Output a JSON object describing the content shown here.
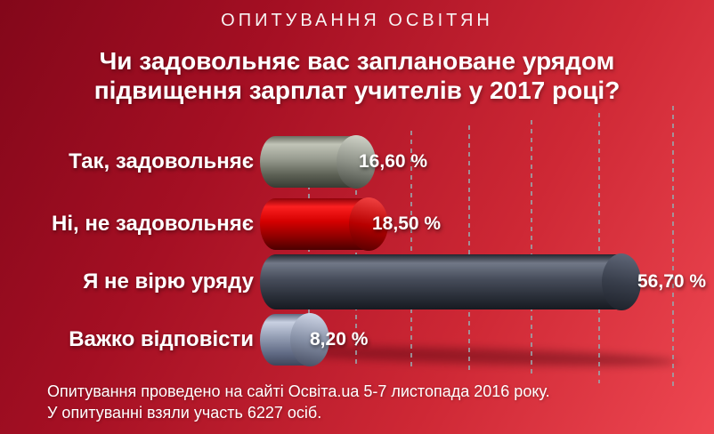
{
  "header": {
    "overline": "ОПИТУВАННЯ ОСВІТЯН",
    "title_line1": "Чи задовольняє вас заплановане урядом",
    "title_line2": "підвищення зарплат учителів у 2017 році?"
  },
  "chart_data": {
    "type": "bar",
    "orientation": "horizontal",
    "title": "Чи задовольняє вас заплановане урядом підвищення зарплат учителів у 2017 році?",
    "categories": [
      "Так, задовольняє",
      "Ні, не задовольняє",
      "Я не вірю уряду",
      "Важко відповісти"
    ],
    "values": [
      16.6,
      18.5,
      56.7,
      8.2
    ],
    "value_labels": [
      "16,60 %",
      "18,50 %",
      "56,70 %",
      "8,20 %"
    ],
    "unit": "%",
    "xlim": [
      0,
      60
    ],
    "grid": "vertical-dashed-perspective",
    "gridline_color": "#9aa2a8",
    "background_gradient": [
      "#83071a",
      "#ee4751"
    ],
    "bars": [
      {
        "name": "yes-satisfied",
        "body": [
          "#6a6e62",
          "#c1c4b7",
          "#979b8f",
          "#5d6155",
          "#383b33"
        ],
        "cap": [
          "#cdd0c5",
          "#8e9288",
          "#4a4e46"
        ]
      },
      {
        "name": "not-satisfied",
        "body": [
          "#8e030b",
          "#fb2020",
          "#d40000",
          "#8e0000",
          "#4c0000"
        ],
        "cap": [
          "#ef4040",
          "#b80000",
          "#5e0000"
        ]
      },
      {
        "name": "dont-trust-govt",
        "body": [
          "#23262e",
          "#717887",
          "#474d5b",
          "#2b303a",
          "#171a21"
        ],
        "cap": [
          "#5e6576",
          "#383e4b",
          "#20242d"
        ]
      },
      {
        "name": "hard-to-answer",
        "body": [
          "#5f6880",
          "#c9d1e2",
          "#949eb4",
          "#636d87",
          "#3e455a"
        ],
        "cap": [
          "#ccd3e4",
          "#8690a6",
          "#4b5267"
        ]
      }
    ]
  },
  "footer": {
    "line1": "Опитування проведено на сайті Освіта.ua 5-7 листопада 2016 року.",
    "line2": "У опитуванні взяли участь 6227 осіб."
  }
}
